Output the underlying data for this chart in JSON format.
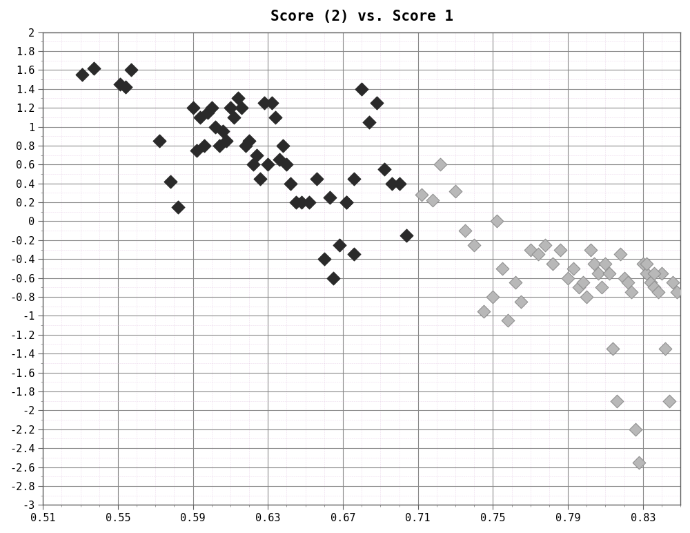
{
  "title": "Score (2) vs. Score 1",
  "xlim": [
    0.51,
    0.85
  ],
  "ylim": [
    -3.0,
    2.0
  ],
  "xticks": [
    0.51,
    0.55,
    0.59,
    0.63,
    0.67,
    0.71,
    0.75,
    0.79,
    0.83
  ],
  "yticks": [
    2,
    1.8,
    1.6,
    1.4,
    1.2,
    1,
    0.8,
    0.6,
    0.4,
    0.2,
    0,
    -0.2,
    -0.4,
    -0.6,
    -0.8,
    -1,
    -1.2,
    -1.4,
    -1.6,
    -1.8,
    -2,
    -2.2,
    -2.4,
    -2.6,
    -2.8,
    -3
  ],
  "group1_color": "#2a2a2a",
  "group2_color": "#b8b8b8",
  "group2_edge_color": "#909090",
  "marker": "D",
  "markersize": 90,
  "background_color": "#ffffff",
  "grid_major_color": "#888888",
  "grid_minor_color": "#cccccc",
  "grid_minor_dotted_color": "#ddaadd",
  "title_fontsize": 15,
  "tick_fontsize": 11,
  "group1_x": [
    0.531,
    0.537,
    0.551,
    0.554,
    0.557,
    0.572,
    0.578,
    0.582,
    0.59,
    0.592,
    0.594,
    0.596,
    0.598,
    0.6,
    0.602,
    0.604,
    0.606,
    0.608,
    0.61,
    0.612,
    0.614,
    0.616,
    0.618,
    0.62,
    0.622,
    0.624,
    0.626,
    0.628,
    0.63,
    0.632,
    0.634,
    0.636,
    0.638,
    0.64,
    0.642,
    0.645,
    0.648,
    0.652,
    0.656,
    0.66,
    0.663,
    0.665,
    0.668,
    0.672,
    0.676,
    0.68,
    0.684,
    0.688,
    0.692,
    0.696,
    0.7,
    0.704,
    0.672,
    0.676
  ],
  "group1_y": [
    1.55,
    1.62,
    1.45,
    1.42,
    1.6,
    0.85,
    0.42,
    0.15,
    1.2,
    0.75,
    1.1,
    0.8,
    1.15,
    1.2,
    1.0,
    0.8,
    0.95,
    0.85,
    1.2,
    1.1,
    1.3,
    1.2,
    0.8,
    0.85,
    0.6,
    0.7,
    0.45,
    1.25,
    0.6,
    1.25,
    1.1,
    0.65,
    0.8,
    0.6,
    0.4,
    0.2,
    0.2,
    0.2,
    0.45,
    -0.4,
    0.25,
    -0.6,
    -0.25,
    0.2,
    0.45,
    1.4,
    1.05,
    1.25,
    0.55,
    0.4,
    0.4,
    -0.15,
    0.2,
    -0.35
  ],
  "group2_x": [
    0.712,
    0.718,
    0.722,
    0.73,
    0.735,
    0.74,
    0.745,
    0.75,
    0.752,
    0.755,
    0.758,
    0.762,
    0.765,
    0.77,
    0.774,
    0.778,
    0.782,
    0.786,
    0.79,
    0.793,
    0.796,
    0.798,
    0.8,
    0.802,
    0.804,
    0.806,
    0.808,
    0.81,
    0.812,
    0.814,
    0.816,
    0.818,
    0.82,
    0.822,
    0.824,
    0.826,
    0.828,
    0.83,
    0.832,
    0.834,
    0.836,
    0.838,
    0.84,
    0.842,
    0.844,
    0.846,
    0.848,
    0.832,
    0.836
  ],
  "group2_y": [
    0.28,
    0.22,
    0.6,
    0.32,
    -0.1,
    -0.25,
    -0.95,
    -0.8,
    0.0,
    -0.5,
    -1.05,
    -0.65,
    -0.85,
    -0.3,
    -0.35,
    -0.25,
    -0.45,
    -0.3,
    -0.6,
    -0.5,
    -0.7,
    -0.65,
    -0.8,
    -0.3,
    -0.45,
    -0.55,
    -0.7,
    -0.45,
    -0.55,
    -1.35,
    -1.9,
    -0.35,
    -0.6,
    -0.65,
    -0.75,
    -2.2,
    -2.55,
    -0.45,
    -0.55,
    -0.65,
    -0.7,
    -0.75,
    -0.55,
    -1.35,
    -1.9,
    -0.65,
    -0.75,
    -0.45,
    -0.55
  ]
}
